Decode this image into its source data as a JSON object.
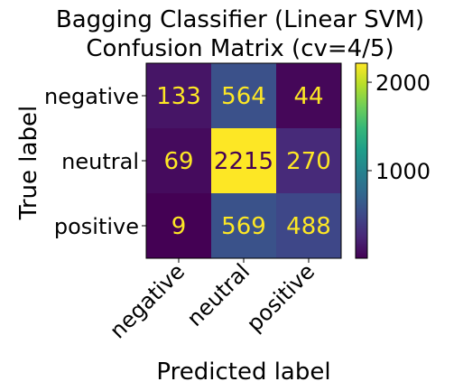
{
  "chart_data": {
    "type": "heatmap",
    "title_lines": [
      "Bagging Classifier (Linear SVM)",
      "Confusion Matrix (cv=4/5)"
    ],
    "xlabel": "Predicted label",
    "ylabel": "True label",
    "x_categories": [
      "negative",
      "neutral",
      "positive"
    ],
    "y_categories": [
      "negative",
      "neutral",
      "positive"
    ],
    "values": [
      [
        133,
        564,
        44
      ],
      [
        69,
        2215,
        270
      ],
      [
        9,
        569,
        488
      ]
    ],
    "colormap": "viridis",
    "vmin": 9,
    "vmax": 2215,
    "colorbar_ticks": [
      1000,
      2000
    ],
    "text_color_low": "#fde725",
    "text_color_high": "#440154"
  }
}
